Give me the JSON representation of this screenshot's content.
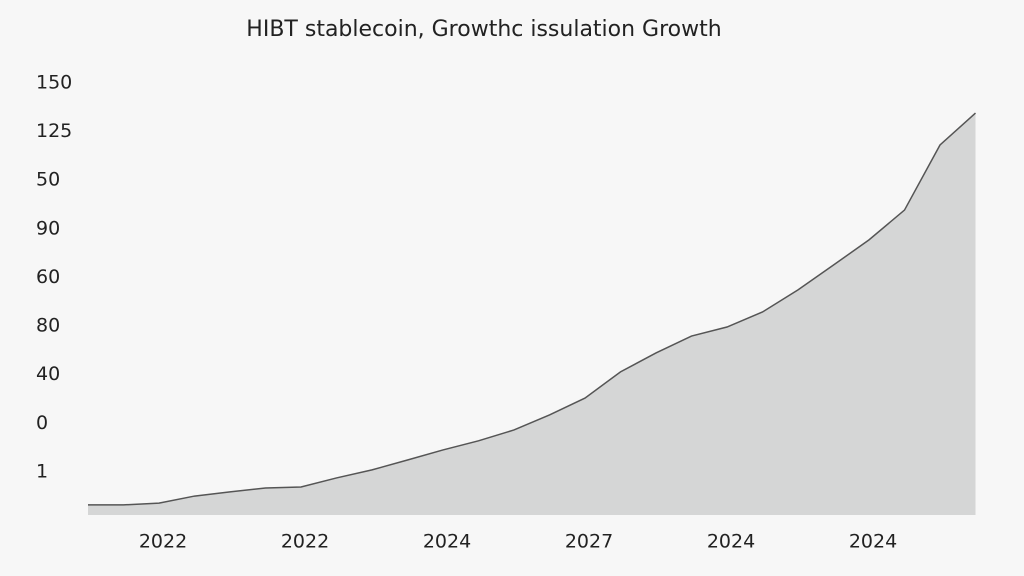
{
  "chart_data": {
    "type": "area",
    "title": "HIBT stablecoin, Growthc issulation Growth",
    "categories": [
      null,
      null,
      "2022",
      null,
      null,
      null,
      "2022",
      null,
      null,
      null,
      "2024",
      null,
      null,
      null,
      "2027",
      null,
      null,
      null,
      "2024",
      null,
      null,
      null,
      "2024",
      null,
      null,
      null
    ],
    "values": [
      -12.7,
      -12.7,
      -12.0,
      -9.3,
      -7.7,
      -6.2,
      -5.8,
      -2.3,
      0.8,
      4.6,
      8.5,
      12.0,
      16.2,
      22.0,
      28.5,
      38.6,
      45.9,
      52.4,
      55.9,
      61.7,
      70.2,
      79.8,
      89.5,
      101.0,
      126.1,
      138.4
    ],
    "color": "#d5d6d6",
    "line_color": "#555555",
    "ylim": [
      -16.6,
      150
    ],
    "yticks": [
      {
        "value": 0,
        "label": "1"
      },
      {
        "value": 18.75,
        "label": "0"
      },
      {
        "value": 37.5,
        "label": "40"
      },
      {
        "value": 56.25,
        "label": "80"
      },
      {
        "value": 75,
        "label": "60"
      },
      {
        "value": 93.75,
        "label": "90"
      },
      {
        "value": 112.5,
        "label": "50"
      },
      {
        "value": 131.25,
        "label": "125"
      },
      150
    ]
  }
}
